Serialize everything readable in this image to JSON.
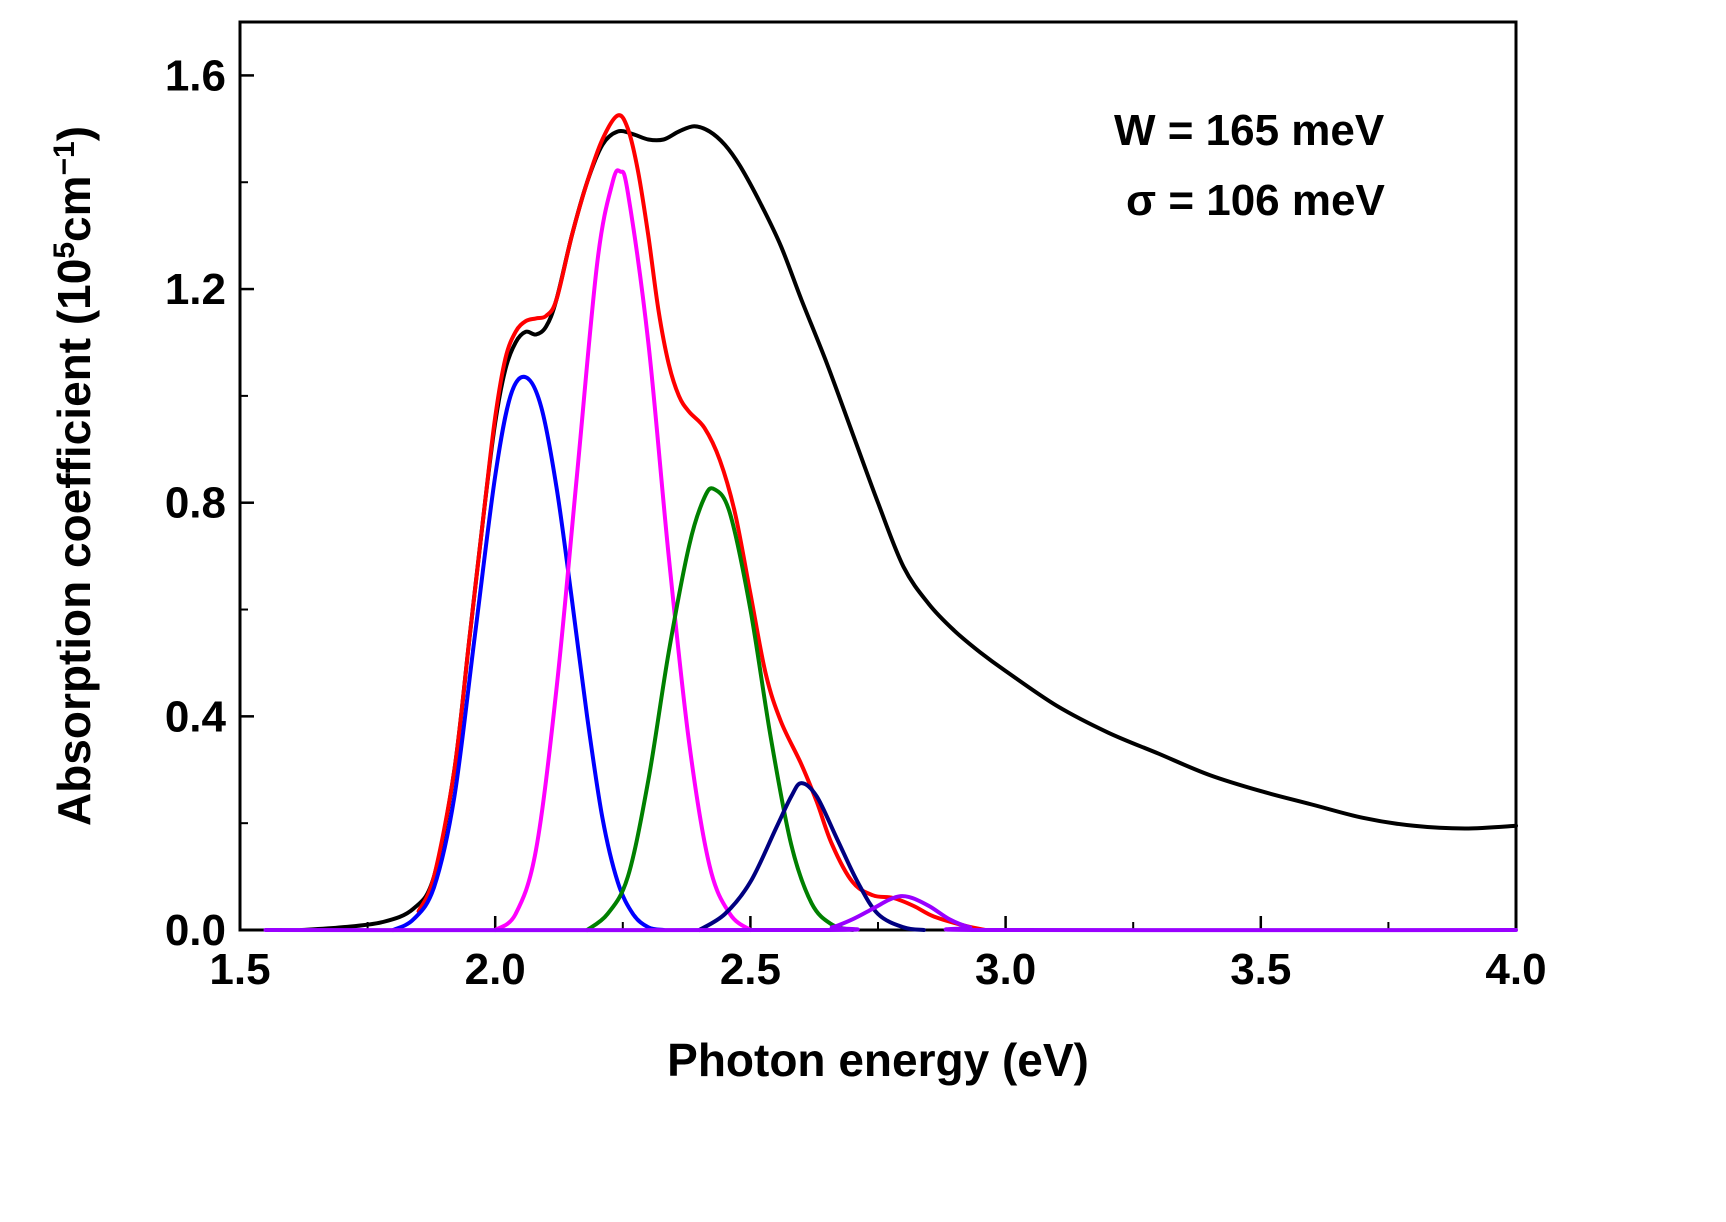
{
  "chart_data": {
    "type": "line",
    "title": "",
    "xlabel": "Photon energy (eV)",
    "ylabel": {
      "text": "Absorption coefficient  (10",
      "sup1": "5",
      "mid": "cm",
      "sup2": "−1",
      "end": ")"
    },
    "xlim": [
      1.5,
      4.0
    ],
    "ylim": [
      0.0,
      1.7
    ],
    "xticks": [
      1.5,
      2.0,
      2.5,
      3.0,
      3.5,
      4.0
    ],
    "xtick_labels": [
      "1.5",
      "2.0",
      "2.5",
      "3.0",
      "3.5",
      "4.0"
    ],
    "yticks": [
      0.0,
      0.4,
      0.8,
      1.2,
      1.6
    ],
    "ytick_labels": [
      "0.0",
      "0.4",
      "0.8",
      "1.2",
      "1.6"
    ],
    "grid": false,
    "annotations": [
      {
        "text": "W =  165 meV"
      },
      {
        "text": "σ = 106 meV"
      }
    ],
    "series": [
      {
        "color": "#000000",
        "points": [
          [
            1.62,
            0.0
          ],
          [
            1.7,
            0.005
          ],
          [
            1.78,
            0.015
          ],
          [
            1.84,
            0.04
          ],
          [
            1.88,
            0.1
          ],
          [
            1.92,
            0.3
          ],
          [
            1.95,
            0.55
          ],
          [
            1.98,
            0.8
          ],
          [
            2.0,
            0.95
          ],
          [
            2.02,
            1.05
          ],
          [
            2.04,
            1.1
          ],
          [
            2.06,
            1.12
          ],
          [
            2.08,
            1.115
          ],
          [
            2.1,
            1.13
          ],
          [
            2.12,
            1.18
          ],
          [
            2.15,
            1.3
          ],
          [
            2.18,
            1.4
          ],
          [
            2.21,
            1.47
          ],
          [
            2.24,
            1.495
          ],
          [
            2.27,
            1.49
          ],
          [
            2.3,
            1.48
          ],
          [
            2.33,
            1.48
          ],
          [
            2.36,
            1.495
          ],
          [
            2.39,
            1.505
          ],
          [
            2.42,
            1.495
          ],
          [
            2.45,
            1.47
          ],
          [
            2.48,
            1.43
          ],
          [
            2.52,
            1.36
          ],
          [
            2.56,
            1.28
          ],
          [
            2.6,
            1.18
          ],
          [
            2.65,
            1.06
          ],
          [
            2.7,
            0.93
          ],
          [
            2.75,
            0.8
          ],
          [
            2.8,
            0.68
          ],
          [
            2.85,
            0.61
          ],
          [
            2.9,
            0.56
          ],
          [
            2.95,
            0.52
          ],
          [
            3.0,
            0.485
          ],
          [
            3.1,
            0.42
          ],
          [
            3.2,
            0.37
          ],
          [
            3.3,
            0.33
          ],
          [
            3.4,
            0.29
          ],
          [
            3.5,
            0.26
          ],
          [
            3.6,
            0.235
          ],
          [
            3.7,
            0.21
          ],
          [
            3.8,
            0.195
          ],
          [
            3.9,
            0.19
          ],
          [
            4.0,
            0.195
          ]
        ]
      },
      {
        "color": "#ff0000",
        "points": [
          [
            1.85,
            0.035
          ],
          [
            1.88,
            0.1
          ],
          [
            1.92,
            0.3
          ],
          [
            1.95,
            0.55
          ],
          [
            1.98,
            0.8
          ],
          [
            2.0,
            0.96
          ],
          [
            2.02,
            1.07
          ],
          [
            2.04,
            1.12
          ],
          [
            2.06,
            1.14
          ],
          [
            2.08,
            1.145
          ],
          [
            2.1,
            1.15
          ],
          [
            2.12,
            1.18
          ],
          [
            2.15,
            1.3
          ],
          [
            2.18,
            1.4
          ],
          [
            2.21,
            1.48
          ],
          [
            2.24,
            1.525
          ],
          [
            2.26,
            1.5
          ],
          [
            2.28,
            1.42
          ],
          [
            2.3,
            1.3
          ],
          [
            2.32,
            1.16
          ],
          [
            2.34,
            1.06
          ],
          [
            2.36,
            1.0
          ],
          [
            2.38,
            0.97
          ],
          [
            2.41,
            0.94
          ],
          [
            2.44,
            0.88
          ],
          [
            2.47,
            0.78
          ],
          [
            2.5,
            0.63
          ],
          [
            2.53,
            0.48
          ],
          [
            2.56,
            0.39
          ],
          [
            2.6,
            0.31
          ],
          [
            2.63,
            0.24
          ],
          [
            2.66,
            0.16
          ],
          [
            2.7,
            0.09
          ],
          [
            2.74,
            0.065
          ],
          [
            2.78,
            0.06
          ],
          [
            2.82,
            0.045
          ],
          [
            2.86,
            0.025
          ],
          [
            2.92,
            0.008
          ],
          [
            2.96,
            0.0
          ]
        ]
      },
      {
        "color": "#0000ff",
        "points": [
          [
            1.8,
            0.0
          ],
          [
            1.84,
            0.02
          ],
          [
            1.88,
            0.08
          ],
          [
            1.92,
            0.25
          ],
          [
            1.96,
            0.55
          ],
          [
            2.0,
            0.85
          ],
          [
            2.03,
            1.0
          ],
          [
            2.06,
            1.035
          ],
          [
            2.09,
            0.98
          ],
          [
            2.12,
            0.83
          ],
          [
            2.15,
            0.62
          ],
          [
            2.18,
            0.4
          ],
          [
            2.21,
            0.21
          ],
          [
            2.24,
            0.09
          ],
          [
            2.27,
            0.03
          ],
          [
            2.3,
            0.005
          ],
          [
            2.33,
            0.0
          ]
        ]
      },
      {
        "color": "#ff00ff",
        "points": [
          [
            2.0,
            0.0
          ],
          [
            2.04,
            0.03
          ],
          [
            2.08,
            0.15
          ],
          [
            2.12,
            0.45
          ],
          [
            2.16,
            0.85
          ],
          [
            2.2,
            1.25
          ],
          [
            2.23,
            1.4
          ],
          [
            2.245,
            1.42
          ],
          [
            2.26,
            1.38
          ],
          [
            2.3,
            1.1
          ],
          [
            2.34,
            0.7
          ],
          [
            2.38,
            0.35
          ],
          [
            2.42,
            0.12
          ],
          [
            2.46,
            0.03
          ],
          [
            2.5,
            0.0
          ]
        ]
      },
      {
        "color": "#008000",
        "points": [
          [
            2.18,
            0.0
          ],
          [
            2.22,
            0.03
          ],
          [
            2.26,
            0.1
          ],
          [
            2.3,
            0.28
          ],
          [
            2.34,
            0.52
          ],
          [
            2.38,
            0.72
          ],
          [
            2.41,
            0.81
          ],
          [
            2.43,
            0.825
          ],
          [
            2.46,
            0.78
          ],
          [
            2.5,
            0.6
          ],
          [
            2.54,
            0.36
          ],
          [
            2.58,
            0.16
          ],
          [
            2.62,
            0.05
          ],
          [
            2.66,
            0.01
          ],
          [
            2.7,
            0.0
          ]
        ]
      },
      {
        "color": "#000080",
        "points": [
          [
            2.4,
            0.0
          ],
          [
            2.45,
            0.03
          ],
          [
            2.5,
            0.09
          ],
          [
            2.55,
            0.19
          ],
          [
            2.58,
            0.25
          ],
          [
            2.6,
            0.275
          ],
          [
            2.63,
            0.25
          ],
          [
            2.67,
            0.17
          ],
          [
            2.71,
            0.09
          ],
          [
            2.75,
            0.03
          ],
          [
            2.8,
            0.005
          ],
          [
            2.84,
            0.0
          ]
        ]
      },
      {
        "color": "#9900ff",
        "points": [
          [
            1.55,
            0.0
          ],
          [
            2.62,
            0.0
          ],
          [
            2.66,
            0.005
          ],
          [
            2.7,
            0.02
          ],
          [
            2.74,
            0.04
          ],
          [
            2.78,
            0.06
          ],
          [
            2.81,
            0.062
          ],
          [
            2.85,
            0.045
          ],
          [
            2.89,
            0.02
          ],
          [
            2.93,
            0.005
          ],
          [
            2.97,
            0.0
          ],
          [
            4.0,
            0.0
          ]
        ]
      }
    ]
  }
}
